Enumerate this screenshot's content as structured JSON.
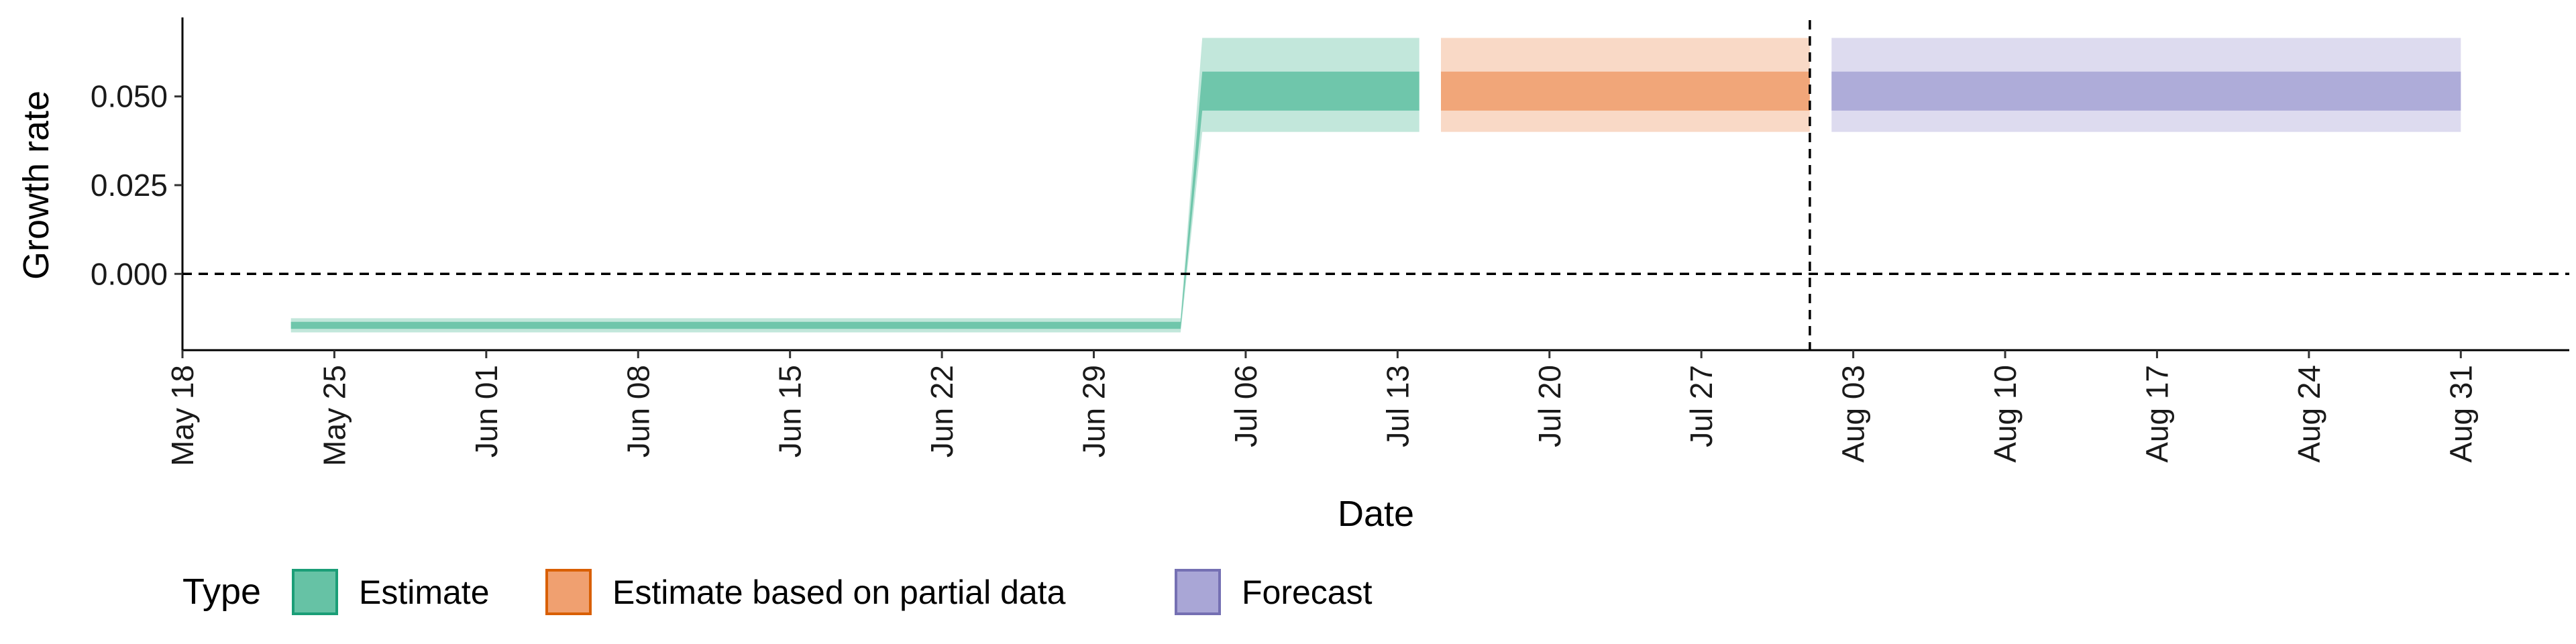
{
  "chart_data": {
    "type": "area",
    "xlabel": "Date",
    "ylabel": "Growth rate",
    "x_tick_labels": [
      "May 18",
      "May 25",
      "Jun 01",
      "Jun 08",
      "Jun 15",
      "Jun 22",
      "Jun 29",
      "Jul 06",
      "Jul 13",
      "Jul 20",
      "Jul 27",
      "Aug 03",
      "Aug 10",
      "Aug 17",
      "Aug 24",
      "Aug 31"
    ],
    "x_ticks": [
      "2020-05-18",
      "2020-05-25",
      "2020-06-01",
      "2020-06-08",
      "2020-06-15",
      "2020-06-22",
      "2020-06-29",
      "2020-07-06",
      "2020-07-13",
      "2020-07-20",
      "2020-07-27",
      "2020-08-03",
      "2020-08-10",
      "2020-08-17",
      "2020-08-24",
      "2020-08-31"
    ],
    "y_tick_labels": [
      "0.000",
      "0.025",
      "0.050"
    ],
    "y_ticks": [
      0.0,
      0.025,
      0.05
    ],
    "xlim": [
      "2020-05-18",
      "2020-09-05"
    ],
    "ylim": [
      -0.0215,
      0.0715
    ],
    "reference_lines": [
      {
        "axis": "y",
        "value": 0.0,
        "style": "dashed"
      },
      {
        "axis": "x",
        "value": "2020-08-01",
        "style": "dashed"
      }
    ],
    "legend": {
      "title": "Type",
      "position": "bottom",
      "entries": [
        "Estimate",
        "Estimate based on partial data",
        "Forecast"
      ]
    },
    "series": [
      {
        "name": "Estimate",
        "color": "#1b9e77",
        "fill": "#66c2a5",
        "points": [
          {
            "x": "2020-05-23",
            "lower90": -0.0165,
            "lower50": -0.0155,
            "median": -0.0145,
            "upper50": -0.0135,
            "upper90": -0.0125
          },
          {
            "x": "2020-07-03",
            "lower90": -0.0165,
            "lower50": -0.0155,
            "median": -0.0145,
            "upper50": -0.0135,
            "upper90": -0.0125
          },
          {
            "x": "2020-07-04",
            "lower90": 0.04,
            "lower50": 0.046,
            "median": 0.0515,
            "upper50": 0.057,
            "upper90": 0.0665
          },
          {
            "x": "2020-07-14",
            "lower90": 0.04,
            "lower50": 0.046,
            "median": 0.0515,
            "upper50": 0.057,
            "upper90": 0.0665
          }
        ]
      },
      {
        "name": "Estimate based on partial data",
        "color": "#d95f02",
        "fill": "#f0a070",
        "points": [
          {
            "x": "2020-07-15",
            "lower90": 0.04,
            "lower50": 0.046,
            "median": 0.0515,
            "upper50": 0.057,
            "upper90": 0.0665
          },
          {
            "x": "2020-08-01",
            "lower90": 0.04,
            "lower50": 0.046,
            "median": 0.0515,
            "upper50": 0.057,
            "upper90": 0.0665
          }
        ]
      },
      {
        "name": "Forecast",
        "color": "#7570b3",
        "fill": "#a9a6d6",
        "points": [
          {
            "x": "2020-08-02",
            "lower90": 0.04,
            "lower50": 0.046,
            "median": 0.0515,
            "upper50": 0.057,
            "upper90": 0.0665
          },
          {
            "x": "2020-08-31",
            "lower90": 0.04,
            "lower50": 0.046,
            "median": 0.0515,
            "upper50": 0.057,
            "upper90": 0.0665
          }
        ]
      }
    ]
  }
}
